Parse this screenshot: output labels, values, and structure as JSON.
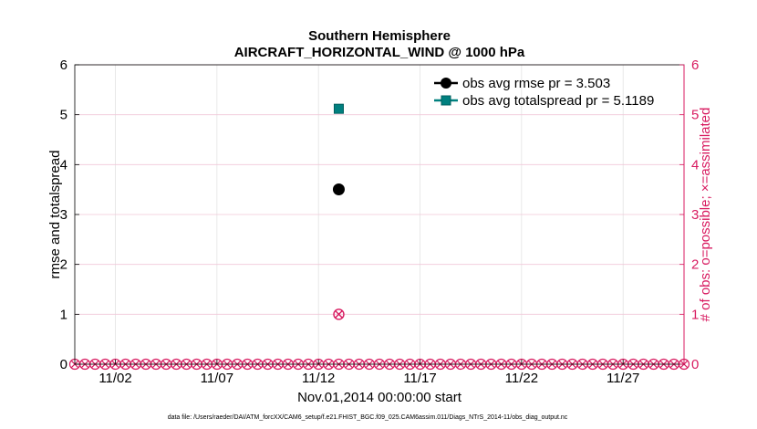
{
  "chart_data": {
    "type": "scatter",
    "title": "Southern Hemisphere",
    "subtitle": "AIRCRAFT_HORIZONTAL_WIND @ 1000 hPa",
    "xlabel": "Nov.01,2014 00:00:00 start",
    "ylabel": "rmse and totalspread",
    "y2label": "# of obs: o=possible; ×=assimilated",
    "footnote": "data file: /Users/raeder/DAI/ATM_forcXX/CAM6_setup/f.e21.FHIST_BGC.f09_025.CAM6assim.011/Diags_NTrS_2014-11/obs_diag_output.nc",
    "xlim": [
      "2014-10-31",
      "2014-11-30"
    ],
    "ylim": [
      0,
      6
    ],
    "y2lim": [
      0,
      6
    ],
    "xticks": [
      "2014-11-02",
      "2014-11-07",
      "2014-11-12",
      "2014-11-17",
      "2014-11-22",
      "2014-11-27"
    ],
    "xtick_labels": [
      "11/02",
      "11/07",
      "11/12",
      "11/17",
      "11/22",
      "11/27"
    ],
    "yticks": [
      0,
      1,
      2,
      3,
      4,
      5,
      6
    ],
    "grid": true,
    "legend_position": "top-right",
    "series": [
      {
        "name": "obs avg rmse pr = 3.503",
        "color": "#000000",
        "marker": "circle",
        "points": [
          {
            "x": "2014-11-13",
            "y": 3.503
          }
        ]
      },
      {
        "name": "obs avg totalspread pr = 5.1189",
        "color": "#00807f",
        "marker": "square",
        "points": [
          {
            "x": "2014-11-13",
            "y": 5.1189
          }
        ]
      }
    ],
    "obs_counts": {
      "color": "#d81b60",
      "axis": "right",
      "x_start": "2014-10-31",
      "x_end": "2014-11-30",
      "x_step_days": 0.5,
      "possible_default": 0,
      "special": [
        {
          "x": "2014-11-13",
          "possible": 1,
          "assimilated": 1
        }
      ]
    }
  }
}
